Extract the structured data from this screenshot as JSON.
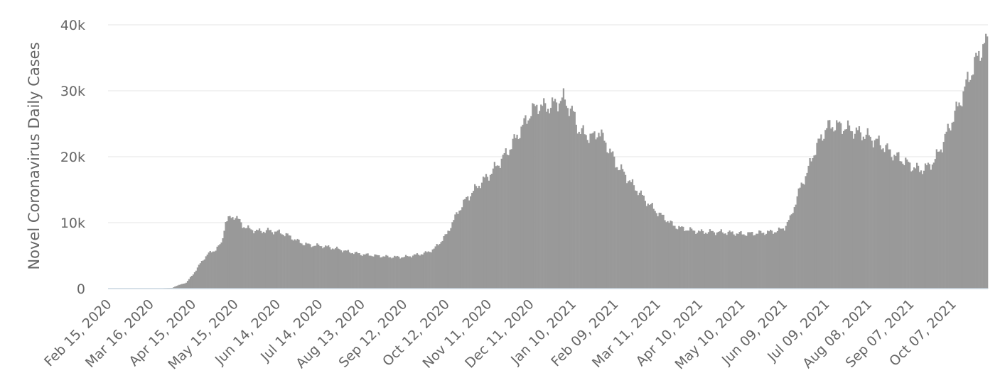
{
  "chart_data": {
    "type": "bar",
    "title": "",
    "ylabel": "Novel Coronavirus Daily Cases",
    "xlabel": "",
    "ylim": [
      0,
      40000
    ],
    "y_ticks": [
      {
        "value": 0,
        "label": "0"
      },
      {
        "value": 10000,
        "label": "10k"
      },
      {
        "value": 20000,
        "label": "20k"
      },
      {
        "value": 30000,
        "label": "30k"
      },
      {
        "value": 40000,
        "label": "40k"
      }
    ],
    "x_start": "Feb 15, 2020",
    "x_end": "Oct 31, 2021",
    "x_tick_labels": [
      "Feb 15, 2020",
      "Mar 16, 2020",
      "Apr 15, 2020",
      "May 15, 2020",
      "Jun 14, 2020",
      "Jul 14, 2020",
      "Aug 13, 2020",
      "Sep 12, 2020",
      "Oct 12, 2020",
      "Nov 11, 2020",
      "Dec 11, 2020",
      "Jan 10, 2021",
      "Feb 09, 2021",
      "Mar 11, 2021",
      "Apr 10, 2021",
      "May 10, 2021",
      "Jun 09, 2021",
      "Jul 09, 2021",
      "Aug 08, 2021",
      "Sep 07, 2021",
      "Oct 07, 2021"
    ],
    "grid": true,
    "bar_color": "#999999",
    "series": [
      {
        "points": [
          [
            "Feb 15, 2020",
            0
          ],
          [
            "Mar 16, 2020",
            0
          ],
          [
            "Mar 31, 2020",
            100
          ],
          [
            "Apr 03, 2020",
            400
          ],
          [
            "Apr 10, 2020",
            900
          ],
          [
            "Apr 15, 2020",
            2200
          ],
          [
            "Apr 20, 2020",
            3800
          ],
          [
            "Apr 25, 2020",
            5200
          ],
          [
            "Apr 30, 2020",
            5800
          ],
          [
            "May 05, 2020",
            6800
          ],
          [
            "May 08, 2020",
            10200
          ],
          [
            "May 12, 2020",
            10800
          ],
          [
            "May 15, 2020",
            11000
          ],
          [
            "May 20, 2020",
            9600
          ],
          [
            "May 25, 2020",
            9000
          ],
          [
            "Jun 01, 2020",
            8700
          ],
          [
            "Jun 07, 2020",
            8800
          ],
          [
            "Jun 14, 2020",
            8600
          ],
          [
            "Jun 20, 2020",
            8200
          ],
          [
            "Jun 25, 2020",
            7600
          ],
          [
            "Jul 01, 2020",
            6900
          ],
          [
            "Jul 07, 2020",
            6600
          ],
          [
            "Jul 14, 2020",
            6500
          ],
          [
            "Jul 20, 2020",
            6300
          ],
          [
            "Jul 27, 2020",
            6000
          ],
          [
            "Aug 03, 2020",
            5600
          ],
          [
            "Aug 13, 2020",
            5200
          ],
          [
            "Aug 23, 2020",
            5000
          ],
          [
            "Sep 02, 2020",
            4800
          ],
          [
            "Sep 12, 2020",
            4800
          ],
          [
            "Sep 20, 2020",
            5100
          ],
          [
            "Sep 27, 2020",
            5400
          ],
          [
            "Oct 03, 2020",
            6000
          ],
          [
            "Oct 08, 2020",
            7200
          ],
          [
            "Oct 12, 2020",
            8200
          ],
          [
            "Oct 16, 2020",
            10000
          ],
          [
            "Oct 21, 2020",
            12000
          ],
          [
            "Oct 26, 2020",
            13600
          ],
          [
            "Oct 31, 2020",
            14800
          ],
          [
            "Nov 05, 2020",
            16000
          ],
          [
            "Nov 11, 2020",
            17200
          ],
          [
            "Nov 18, 2020",
            19000
          ],
          [
            "Nov 25, 2020",
            21000
          ],
          [
            "Dec 02, 2020",
            23500
          ],
          [
            "Dec 06, 2020",
            25000
          ],
          [
            "Dec 11, 2020",
            26800
          ],
          [
            "Dec 16, 2020",
            27800
          ],
          [
            "Dec 21, 2020",
            27500
          ],
          [
            "Dec 26, 2020",
            27800
          ],
          [
            "Dec 31, 2020",
            28500
          ],
          [
            "Jan 03, 2021",
            28800
          ],
          [
            "Jan 07, 2021",
            27500
          ],
          [
            "Jan 10, 2021",
            26500
          ],
          [
            "Jan 14, 2021",
            24000
          ],
          [
            "Jan 20, 2021",
            23200
          ],
          [
            "Jan 25, 2021",
            23000
          ],
          [
            "Jan 28, 2021",
            24000
          ],
          [
            "Feb 02, 2021",
            22000
          ],
          [
            "Feb 06, 2021",
            20500
          ],
          [
            "Feb 09, 2021",
            19000
          ],
          [
            "Feb 15, 2021",
            17500
          ],
          [
            "Feb 20, 2021",
            16000
          ],
          [
            "Feb 25, 2021",
            14800
          ],
          [
            "Mar 03, 2021",
            13200
          ],
          [
            "Mar 11, 2021",
            11500
          ],
          [
            "Mar 17, 2021",
            10500
          ],
          [
            "Mar 22, 2021",
            9600
          ],
          [
            "Mar 27, 2021",
            9200
          ],
          [
            "Apr 05, 2021",
            8800
          ],
          [
            "Apr 10, 2021",
            8600
          ],
          [
            "Apr 20, 2021",
            8600
          ],
          [
            "Apr 30, 2021",
            8500
          ],
          [
            "May 10, 2021",
            8300
          ],
          [
            "May 20, 2021",
            8400
          ],
          [
            "May 30, 2021",
            8600
          ],
          [
            "Jun 05, 2021",
            8800
          ],
          [
            "Jun 09, 2021",
            9300
          ],
          [
            "Jun 13, 2021",
            10600
          ],
          [
            "Jun 17, 2021",
            13200
          ],
          [
            "Jun 21, 2021",
            15800
          ],
          [
            "Jun 25, 2021",
            17500
          ],
          [
            "Jun 29, 2021",
            20200
          ],
          [
            "Jul 03, 2021",
            22000
          ],
          [
            "Jul 09, 2021",
            24500
          ],
          [
            "Jul 15, 2021",
            24800
          ],
          [
            "Jul 21, 2021",
            24500
          ],
          [
            "Jul 27, 2021",
            24000
          ],
          [
            "Aug 03, 2021",
            23500
          ],
          [
            "Aug 08, 2021",
            23000
          ],
          [
            "Aug 14, 2021",
            22300
          ],
          [
            "Aug 20, 2021",
            21300
          ],
          [
            "Aug 26, 2021",
            20200
          ],
          [
            "Sep 01, 2021",
            19500
          ],
          [
            "Sep 07, 2021",
            18600
          ],
          [
            "Sep 13, 2021",
            18000
          ],
          [
            "Sep 19, 2021",
            18500
          ],
          [
            "Sep 24, 2021",
            19600
          ],
          [
            "Sep 29, 2021",
            21800
          ],
          [
            "Oct 04, 2021",
            24500
          ],
          [
            "Oct 07, 2021",
            26000
          ],
          [
            "Oct 12, 2021",
            28500
          ],
          [
            "Oct 17, 2021",
            31500
          ],
          [
            "Oct 22, 2021",
            34000
          ],
          [
            "Oct 26, 2021",
            36000
          ],
          [
            "Oct 29, 2021",
            37200
          ],
          [
            "Oct 31, 2021",
            37000
          ]
        ]
      }
    ]
  }
}
